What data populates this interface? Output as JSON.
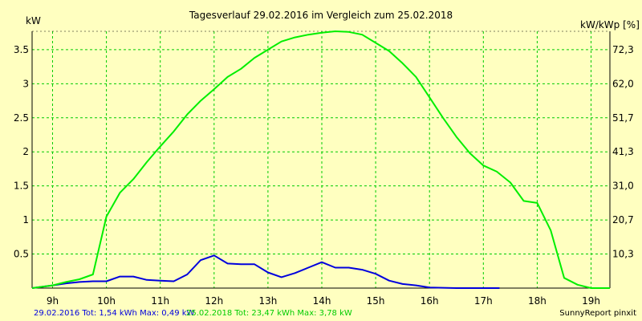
{
  "chart_data": {
    "type": "line",
    "title": "Tagesverlauf 29.02.2016 im Vergleich zum 25.02.2018",
    "ylabel_left": "kW",
    "ylabel_right": "kW/kWp [%]",
    "xlim": [
      8.62,
      19.35
    ],
    "ylim": [
      0,
      3.77
    ],
    "x_ticks": [
      9,
      10,
      11,
      12,
      13,
      14,
      15,
      16,
      17,
      18,
      19
    ],
    "x_tick_labels": [
      "9h",
      "10h",
      "11h",
      "12h",
      "13h",
      "14h",
      "15h",
      "16h",
      "17h",
      "18h",
      "19h"
    ],
    "y_ticks": [
      0.5,
      1,
      1.5,
      2,
      2.5,
      3,
      3.5
    ],
    "y_tick_labels": [
      "0.5",
      "1",
      "1.5",
      "2",
      "2.5",
      "3",
      "3.5"
    ],
    "y2_tick_labels": [
      "10,3",
      "20,7",
      "31,0",
      "41,3",
      "51,7",
      "62,0",
      "72,3"
    ],
    "grid": true,
    "series": [
      {
        "name": "29.02.2016",
        "color": "#0000dd",
        "points": [
          [
            8.62,
            0
          ],
          [
            9.0,
            0.04
          ],
          [
            9.25,
            0.07
          ],
          [
            9.5,
            0.09
          ],
          [
            9.75,
            0.1
          ],
          [
            10.0,
            0.1
          ],
          [
            10.25,
            0.17
          ],
          [
            10.5,
            0.17
          ],
          [
            10.75,
            0.12
          ],
          [
            11.0,
            0.11
          ],
          [
            11.25,
            0.1
          ],
          [
            11.5,
            0.2
          ],
          [
            11.75,
            0.41
          ],
          [
            12.0,
            0.48
          ],
          [
            12.25,
            0.36
          ],
          [
            12.5,
            0.35
          ],
          [
            12.75,
            0.35
          ],
          [
            13.0,
            0.23
          ],
          [
            13.25,
            0.16
          ],
          [
            13.5,
            0.22
          ],
          [
            13.75,
            0.3
          ],
          [
            14.0,
            0.38
          ],
          [
            14.25,
            0.3
          ],
          [
            14.5,
            0.3
          ],
          [
            14.75,
            0.27
          ],
          [
            15.0,
            0.21
          ],
          [
            15.25,
            0.11
          ],
          [
            15.5,
            0.06
          ],
          [
            15.75,
            0.04
          ],
          [
            16.0,
            0.01
          ],
          [
            16.5,
            0.0
          ],
          [
            17.0,
            0.0
          ],
          [
            17.3,
            0.0
          ]
        ]
      },
      {
        "name": "25.02.2018",
        "color": "#00ee00",
        "points": [
          [
            8.62,
            0
          ],
          [
            9.0,
            0.04
          ],
          [
            9.25,
            0.09
          ],
          [
            9.5,
            0.13
          ],
          [
            9.75,
            0.2
          ],
          [
            10.0,
            1.05
          ],
          [
            10.25,
            1.4
          ],
          [
            10.5,
            1.6
          ],
          [
            10.75,
            1.85
          ],
          [
            11.0,
            2.08
          ],
          [
            11.25,
            2.3
          ],
          [
            11.5,
            2.55
          ],
          [
            11.75,
            2.75
          ],
          [
            12.0,
            2.92
          ],
          [
            12.25,
            3.1
          ],
          [
            12.5,
            3.22
          ],
          [
            12.75,
            3.38
          ],
          [
            13.0,
            3.5
          ],
          [
            13.25,
            3.62
          ],
          [
            13.5,
            3.68
          ],
          [
            13.75,
            3.72
          ],
          [
            14.0,
            3.75
          ],
          [
            14.25,
            3.77
          ],
          [
            14.5,
            3.76
          ],
          [
            14.75,
            3.72
          ],
          [
            15.0,
            3.6
          ],
          [
            15.25,
            3.48
          ],
          [
            15.5,
            3.3
          ],
          [
            15.75,
            3.1
          ],
          [
            16.0,
            2.8
          ],
          [
            16.25,
            2.5
          ],
          [
            16.5,
            2.22
          ],
          [
            16.75,
            1.98
          ],
          [
            17.0,
            1.8
          ],
          [
            17.25,
            1.71
          ],
          [
            17.5,
            1.55
          ],
          [
            17.75,
            1.28
          ],
          [
            18.0,
            1.25
          ],
          [
            18.25,
            0.85
          ],
          [
            18.5,
            0.15
          ],
          [
            18.75,
            0.05
          ],
          [
            19.0,
            0.0
          ],
          [
            19.35,
            0.0
          ]
        ]
      }
    ]
  },
  "footer": {
    "series1_label": "29.02.2016 Tot: 1,54 kWh Max: 0,49 kW",
    "series2_label": "25.02.2018 Tot: 23,47 kWh Max: 3,78 kW",
    "brand": "SunnyReport pinxit"
  },
  "colors": {
    "background": "#ffffc0",
    "grid": "#00cc00",
    "series1": "#0000dd",
    "series2": "#00ee00"
  }
}
